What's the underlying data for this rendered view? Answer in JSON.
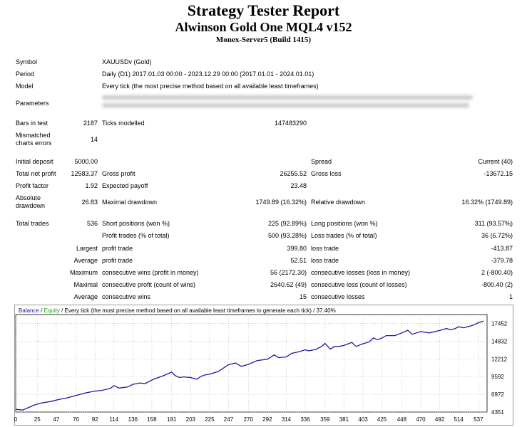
{
  "header": {
    "title": "Strategy Tester Report",
    "ea_name": "Alwinson Gold One MQL4 v152",
    "server": "Monex-Server5 (Build 1415)"
  },
  "info": {
    "symbol_label": "Symbol",
    "symbol_value": "XAUUSDv (Gold)",
    "period_label": "Period",
    "period_value": "Daily (D1) 2017.01.03 00:00 - 2023.12.29 00:00 (2017.01.01 - 2024.01.01)",
    "model_label": "Model",
    "model_value": "Every tick (the most precise method based on all available least timeframes)",
    "parameters_label": "Parameters",
    "bars_label": "Bars in test",
    "bars_value": "2187",
    "ticks_label": "Ticks modelled",
    "ticks_value": "147483290",
    "mismatched_label_1": "Mismatched",
    "mismatched_label_2": "charts errors",
    "mismatched_value": "14"
  },
  "stats": {
    "initial_deposit_label": "Initial deposit",
    "initial_deposit_value": "5000.00",
    "spread_label": "Spread",
    "spread_value": "Current (40)",
    "net_profit_label": "Total net profit",
    "net_profit_value": "12583.37",
    "gross_profit_label": "Gross profit",
    "gross_profit_value": "26255.52",
    "gross_loss_label": "Gross loss",
    "gross_loss_value": "-13672.15",
    "profit_factor_label": "Profit factor",
    "profit_factor_value": "1.92",
    "expected_payoff_label": "Expected payoff",
    "expected_payoff_value": "23.48",
    "abs_dd_label_1": "Absolute",
    "abs_dd_label_2": "drawdown",
    "abs_dd_value": "26.83",
    "max_dd_label": "Maximal drawdown",
    "max_dd_value": "1749.89 (16.32%)",
    "rel_dd_label": "Relative drawdown",
    "rel_dd_value": "16.32% (1749.89)",
    "total_trades_label": "Total trades",
    "total_trades_value": "536",
    "short_label": "Short positions (won %)",
    "short_value": "225 (92.89%)",
    "long_label": "Long positions (won %)",
    "long_value": "311 (93.57%)",
    "profit_trades_label": "Profit trades (% of total)",
    "profit_trades_value": "500 (93.28%)",
    "loss_trades_label": "Loss trades (% of total)",
    "loss_trades_value": "36 (6.72%)",
    "largest_label": "Largest",
    "largest_profit_label": "profit trade",
    "largest_profit_value": "399.80",
    "largest_loss_label": "loss trade",
    "largest_loss_value": "-413.87",
    "average_label": "Average",
    "average_profit_label": "profit trade",
    "average_profit_value": "52.51",
    "average_loss_label": "loss trade",
    "average_loss_value": "-379.78",
    "maximum_label": "Maximum",
    "max_cw_label": "consecutive wins (profit in money)",
    "max_cw_value": "56 (2172.30)",
    "max_cl_label": "consecutive losses (loss in money)",
    "max_cl_value": "2 (-800.40)",
    "maximal_label": "Maximal",
    "maximal_cp_label": "consecutive profit (count of wins)",
    "maximal_cp_value": "2640.62 (49)",
    "maximal_cl_label": "consecutive loss (count of losses)",
    "maximal_cl_value": "-800.40 (2)",
    "average2_label": "Average",
    "avg_cw_label": "consecutive wins",
    "avg_cw_value": "15",
    "avg_cl_label": "consecutive losses",
    "avg_cl_value": "1"
  },
  "chart_data": {
    "type": "line",
    "legend": {
      "balance": "Balance",
      "sep": " / ",
      "equity": "Equity",
      "rest": " / Every tick (the most precise method based on all available least timeframes to generate each tick) / 37.40%"
    },
    "x_ticks": [
      "0",
      "25",
      "47",
      "70",
      "92",
      "114",
      "136",
      "158",
      "181",
      "203",
      "225",
      "247",
      "270",
      "292",
      "314",
      "336",
      "359",
      "381",
      "403",
      "425",
      "448",
      "470",
      "492",
      "514",
      "537"
    ],
    "y_ticks": [
      "17452",
      "14832",
      "12212",
      "9592",
      "6972",
      "4351"
    ],
    "ylim": [
      4351,
      18760
    ],
    "xlim": [
      0,
      547
    ],
    "series": [
      {
        "name": "Balance",
        "color": "#1a1aa0",
        "x": [
          0,
          8,
          15,
          22,
          30,
          40,
          50,
          60,
          70,
          80,
          92,
          100,
          110,
          114,
          120,
          130,
          136,
          145,
          150,
          160,
          170,
          181,
          185,
          190,
          195,
          203,
          210,
          215,
          220,
          225,
          235,
          247,
          255,
          262,
          270,
          280,
          292,
          300,
          305,
          314,
          320,
          330,
          336,
          340,
          348,
          355,
          359,
          365,
          370,
          375,
          381,
          390,
          395,
          403,
          410,
          415,
          420,
          425,
          430,
          440,
          448,
          455,
          460,
          470,
          480,
          492,
          500,
          505,
          510,
          514,
          520,
          530,
          537,
          543
        ],
        "y": [
          4750,
          4650,
          5020,
          5400,
          5700,
          5900,
          6200,
          6450,
          6800,
          7150,
          7450,
          7550,
          7850,
          8250,
          7900,
          8050,
          8450,
          8650,
          8550,
          9200,
          9650,
          10250,
          9750,
          9450,
          9550,
          9450,
          9200,
          9620,
          9850,
          9950,
          10350,
          11350,
          11600,
          11100,
          11400,
          11950,
          12150,
          12800,
          12400,
          12500,
          13020,
          13300,
          13550,
          13400,
          13600,
          14050,
          14500,
          13650,
          14050,
          14050,
          14200,
          14650,
          14050,
          14450,
          14700,
          15300,
          15050,
          15300,
          15650,
          15650,
          16050,
          16450,
          15850,
          16250,
          16050,
          16400,
          16700,
          16500,
          16700,
          16950,
          16800,
          17150,
          17550,
          17800
        ]
      }
    ]
  }
}
